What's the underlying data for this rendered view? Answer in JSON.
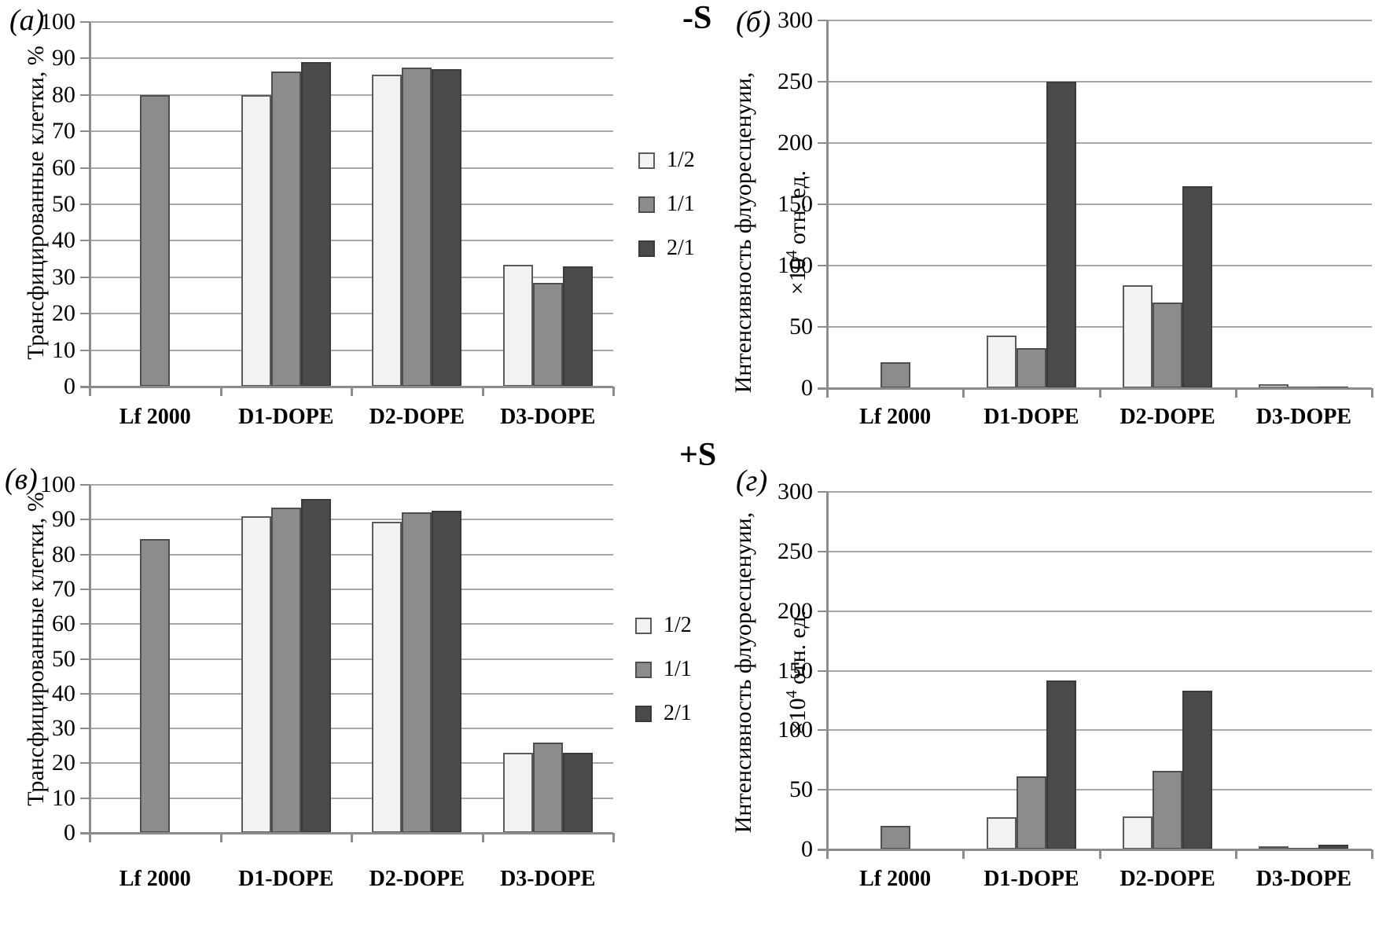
{
  "titles": {
    "top_right_condition": "-S",
    "bottom_right_condition": "+S"
  },
  "panel_labels": {
    "a": "(a)",
    "b": "(б)",
    "v": "(в)",
    "g": "(г)"
  },
  "legend": {
    "items": [
      {
        "label": "1/2",
        "color": "#f2f2f2",
        "border": "#5a5a5a"
      },
      {
        "label": "1/1",
        "color": "#8c8c8c",
        "border": "#4f4f4f"
      },
      {
        "label": "2/1",
        "color": "#4a4a4a",
        "border": "#3a3a3a"
      }
    ]
  },
  "colors": {
    "grid": "#a8a8a8",
    "axis": "#8c8c8c",
    "background": "#ffffff",
    "text": "#000000"
  },
  "chart_data": [
    {
      "type": "bar",
      "panel": "(a)",
      "ylabel": "Трансфицированные клетки, %",
      "ylim": [
        0,
        100
      ],
      "ytick_step": 10,
      "grid": true,
      "categories": [
        "Lf 2000",
        "D1-DOPE",
        "D2-DOPE",
        "D3-DOPE"
      ],
      "series": [
        {
          "name": "1/2",
          "values": [
            null,
            80,
            85.5,
            33.5
          ]
        },
        {
          "name": "1/1",
          "values": [
            80,
            86.5,
            87.5,
            28.5
          ]
        },
        {
          "name": "2/1",
          "values": [
            null,
            89,
            87,
            33
          ]
        }
      ]
    },
    {
      "type": "bar",
      "panel": "(б)",
      "title": "-S",
      "ylabel_line1": "Интенсивность флуоресценуии,",
      "ylabel_line2_prefix": "×10",
      "ylabel_sup": "4",
      "ylabel_line2_suffix": " отн. ед.",
      "ylim": [
        0,
        300
      ],
      "ytick_step": 50,
      "grid": true,
      "categories": [
        "Lf 2000",
        "D1-DOPE",
        "D2-DOPE",
        "D3-DOPE"
      ],
      "series": [
        {
          "name": "1/2",
          "values": [
            null,
            43,
            84,
            3
          ]
        },
        {
          "name": "1/1",
          "values": [
            21,
            33,
            70,
            1
          ]
        },
        {
          "name": "2/1",
          "values": [
            null,
            250,
            165,
            1.5
          ]
        }
      ]
    },
    {
      "type": "bar",
      "panel": "(в)",
      "ylabel": "Трансфицированные клетки, %",
      "ylim": [
        0,
        100
      ],
      "ytick_step": 10,
      "grid": true,
      "categories": [
        "Lf 2000",
        "D1-DOPE",
        "D2-DOPE",
        "D3-DOPE"
      ],
      "series": [
        {
          "name": "1/2",
          "values": [
            null,
            91,
            89.5,
            23
          ]
        },
        {
          "name": "1/1",
          "values": [
            84.5,
            93.5,
            92,
            26
          ]
        },
        {
          "name": "2/1",
          "values": [
            null,
            96,
            92.5,
            23
          ]
        }
      ]
    },
    {
      "type": "bar",
      "panel": "(г)",
      "title": "+S",
      "ylabel_line1": "Интенсивность флуоресценуии,",
      "ylabel_line2_prefix": "×10",
      "ylabel_sup": "4",
      "ylabel_line2_suffix": " отн. ед.",
      "ylim": [
        0,
        300
      ],
      "ytick_step": 50,
      "grid": true,
      "categories": [
        "Lf 2000",
        "D1-DOPE",
        "D2-DOPE",
        "D3-DOPE"
      ],
      "series": [
        {
          "name": "1/2",
          "values": [
            null,
            27,
            28,
            2.5
          ]
        },
        {
          "name": "1/1",
          "values": [
            20,
            61,
            66,
            1.5
          ]
        },
        {
          "name": "2/1",
          "values": [
            null,
            142,
            133,
            4
          ]
        }
      ]
    }
  ]
}
